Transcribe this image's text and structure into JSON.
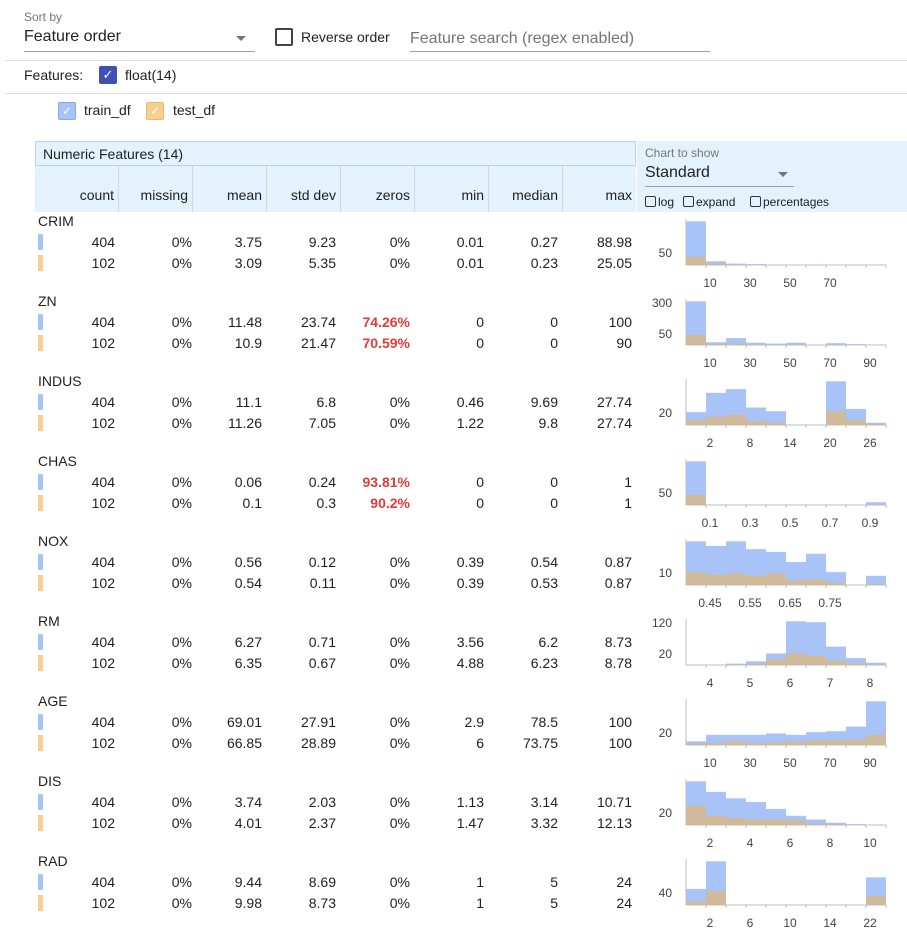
{
  "toolbar": {
    "sort_by_label": "Sort by",
    "sort_by_value": "Feature order",
    "reverse_label": "Reverse order",
    "search_placeholder": "Feature search (regex enabled)"
  },
  "features_filter": {
    "label": "Features:",
    "float_label": "float(14)"
  },
  "legend": [
    {
      "name": "train_df",
      "color": "#a7c3f7"
    },
    {
      "name": "test_df",
      "color": "#f8cf8f"
    }
  ],
  "table": {
    "title": "Numeric Features (14)",
    "columns": [
      "count",
      "missing",
      "mean",
      "std dev",
      "zeros",
      "min",
      "median",
      "max"
    ],
    "chart_to_show_label": "Chart to show",
    "chart_to_show_value": "Standard",
    "options": [
      "log",
      "expand",
      "percentages"
    ]
  },
  "colors": {
    "train": "#a7c3f7",
    "test": "#d7b88a",
    "header_bg": "#e3f2fd",
    "accent": "#3f51b5",
    "zeros_highlight": "#e53935"
  },
  "features": [
    {
      "name": "CRIM",
      "rows": [
        [
          "404",
          "0%",
          "3.75",
          "9.23",
          "0%",
          "0.01",
          "0.27",
          "88.98"
        ],
        [
          "102",
          "0%",
          "3.09",
          "5.35",
          "0%",
          "0.01",
          "0.23",
          "25.05"
        ]
      ],
      "zeros_highlight": false,
      "hist": {
        "ylabels": [
          "50"
        ],
        "xlabels": [
          "10",
          "30",
          "50",
          "70"
        ],
        "train": [
          0.95,
          0.08,
          0.03,
          0.02,
          0.01,
          0.01,
          0.01,
          0.0,
          0.01,
          0.0
        ],
        "test": [
          0.18,
          0.03,
          0.01,
          0,
          0,
          0,
          0,
          0,
          0,
          0
        ]
      }
    },
    {
      "name": "ZN",
      "rows": [
        [
          "404",
          "0%",
          "11.48",
          "23.74",
          "74.26%",
          "0",
          "0",
          "100"
        ],
        [
          "102",
          "0%",
          "10.9",
          "21.47",
          "70.59%",
          "0",
          "0",
          "90"
        ]
      ],
      "zeros_highlight": true,
      "hist": {
        "ylabels": [
          "300",
          "50"
        ],
        "xlabels": [
          "10",
          "30",
          "50",
          "70",
          "90"
        ],
        "train": [
          0.95,
          0.06,
          0.15,
          0.05,
          0.03,
          0.05,
          0.01,
          0.04,
          0.02,
          0.0
        ],
        "test": [
          0.22,
          0.02,
          0.03,
          0.01,
          0,
          0.01,
          0,
          0.01,
          0,
          0
        ]
      }
    },
    {
      "name": "INDUS",
      "rows": [
        [
          "404",
          "0%",
          "11.1",
          "6.8",
          "0%",
          "0.46",
          "9.69",
          "27.74"
        ],
        [
          "102",
          "0%",
          "11.26",
          "7.05",
          "0%",
          "1.22",
          "9.8",
          "27.74"
        ]
      ],
      "zeros_highlight": false,
      "hist": {
        "ylabels": [
          "20"
        ],
        "xlabels": [
          "2",
          "8",
          "14",
          "20",
          "26"
        ],
        "train": [
          0.28,
          0.7,
          0.78,
          0.38,
          0.3,
          0.0,
          0.0,
          0.95,
          0.35,
          0.05
        ],
        "test": [
          0.1,
          0.18,
          0.22,
          0.09,
          0.05,
          0,
          0,
          0.3,
          0.1,
          0.02
        ]
      }
    },
    {
      "name": "CHAS",
      "rows": [
        [
          "404",
          "0%",
          "0.06",
          "0.24",
          "93.81%",
          "0",
          "0",
          "1"
        ],
        [
          "102",
          "0%",
          "0.1",
          "0.3",
          "90.2%",
          "0",
          "0",
          "1"
        ]
      ],
      "zeros_highlight": true,
      "hist": {
        "ylabels": [
          "50"
        ],
        "xlabels": [
          "0.1",
          "0.3",
          "0.5",
          "0.7",
          "0.9"
        ],
        "train": [
          0.95,
          0,
          0,
          0,
          0,
          0,
          0,
          0,
          0,
          0.06
        ],
        "test": [
          0.22,
          0,
          0,
          0,
          0,
          0,
          0,
          0,
          0,
          0.01
        ]
      }
    },
    {
      "name": "NOX",
      "rows": [
        [
          "404",
          "0%",
          "0.56",
          "0.12",
          "0%",
          "0.39",
          "0.54",
          "0.87"
        ],
        [
          "102",
          "0%",
          "0.54",
          "0.11",
          "0%",
          "0.39",
          "0.53",
          "0.87"
        ]
      ],
      "zeros_highlight": false,
      "hist": {
        "ylabels": [
          "10"
        ],
        "xlabels": [
          "0.45",
          "0.55",
          "0.65",
          "0.75"
        ],
        "train": [
          0.95,
          0.85,
          0.95,
          0.78,
          0.72,
          0.5,
          0.68,
          0.28,
          0.0,
          0.2
        ],
        "test": [
          0.28,
          0.22,
          0.25,
          0.2,
          0.25,
          0.1,
          0.12,
          0.05,
          0.0,
          0.02
        ]
      }
    },
    {
      "name": "RM",
      "rows": [
        [
          "404",
          "0%",
          "6.27",
          "0.71",
          "0%",
          "3.56",
          "6.2",
          "8.73"
        ],
        [
          "102",
          "0%",
          "6.35",
          "0.67",
          "0%",
          "4.88",
          "6.23",
          "8.78"
        ]
      ],
      "zeros_highlight": false,
      "hist": {
        "ylabels": [
          "120",
          "20"
        ],
        "xlabels": [
          "4",
          "5",
          "6",
          "7",
          "8"
        ],
        "train": [
          0.01,
          0.01,
          0.03,
          0.08,
          0.25,
          0.95,
          0.93,
          0.4,
          0.15,
          0.05
        ],
        "test": [
          0.0,
          0.0,
          0.01,
          0.02,
          0.12,
          0.25,
          0.2,
          0.1,
          0.04,
          0.01
        ]
      }
    },
    {
      "name": "AGE",
      "rows": [
        [
          "404",
          "0%",
          "69.01",
          "27.91",
          "0%",
          "2.9",
          "78.5",
          "100"
        ],
        [
          "102",
          "0%",
          "66.85",
          "28.89",
          "0%",
          "6",
          "73.75",
          "100"
        ]
      ],
      "zeros_highlight": false,
      "hist": {
        "ylabels": [
          "20"
        ],
        "xlabels": [
          "10",
          "30",
          "50",
          "70",
          "90"
        ],
        "train": [
          0.08,
          0.22,
          0.22,
          0.22,
          0.25,
          0.22,
          0.28,
          0.3,
          0.4,
          0.95
        ],
        "test": [
          0.03,
          0.05,
          0.08,
          0.05,
          0.06,
          0.08,
          0.1,
          0.1,
          0.12,
          0.22
        ]
      }
    },
    {
      "name": "DIS",
      "rows": [
        [
          "404",
          "0%",
          "3.74",
          "2.03",
          "0%",
          "1.13",
          "3.14",
          "10.71"
        ],
        [
          "102",
          "0%",
          "4.01",
          "2.37",
          "0%",
          "1.47",
          "3.32",
          "12.13"
        ]
      ],
      "zeros_highlight": false,
      "hist": {
        "ylabels": [
          "20"
        ],
        "xlabels": [
          "2",
          "4",
          "6",
          "8",
          "10"
        ],
        "train": [
          0.95,
          0.72,
          0.58,
          0.5,
          0.35,
          0.2,
          0.12,
          0.05,
          0.02,
          0.01
        ],
        "test": [
          0.42,
          0.2,
          0.15,
          0.12,
          0.12,
          0.1,
          0.03,
          0.02,
          0,
          0
        ]
      }
    },
    {
      "name": "RAD",
      "rows": [
        [
          "404",
          "0%",
          "9.44",
          "8.69",
          "0%",
          "1",
          "5",
          "24"
        ],
        [
          "102",
          "0%",
          "9.98",
          "8.73",
          "0%",
          "1",
          "5",
          "24"
        ]
      ],
      "zeros_highlight": false,
      "hist": {
        "ylabels": [
          "40"
        ],
        "xlabels": [
          "2",
          "6",
          "10",
          "14",
          "22"
        ],
        "train": [
          0.35,
          0.95,
          0,
          0,
          0,
          0,
          0,
          0,
          0,
          0.6
        ],
        "test": [
          0.08,
          0.3,
          0,
          0,
          0,
          0,
          0,
          0,
          0,
          0.2
        ]
      }
    }
  ]
}
